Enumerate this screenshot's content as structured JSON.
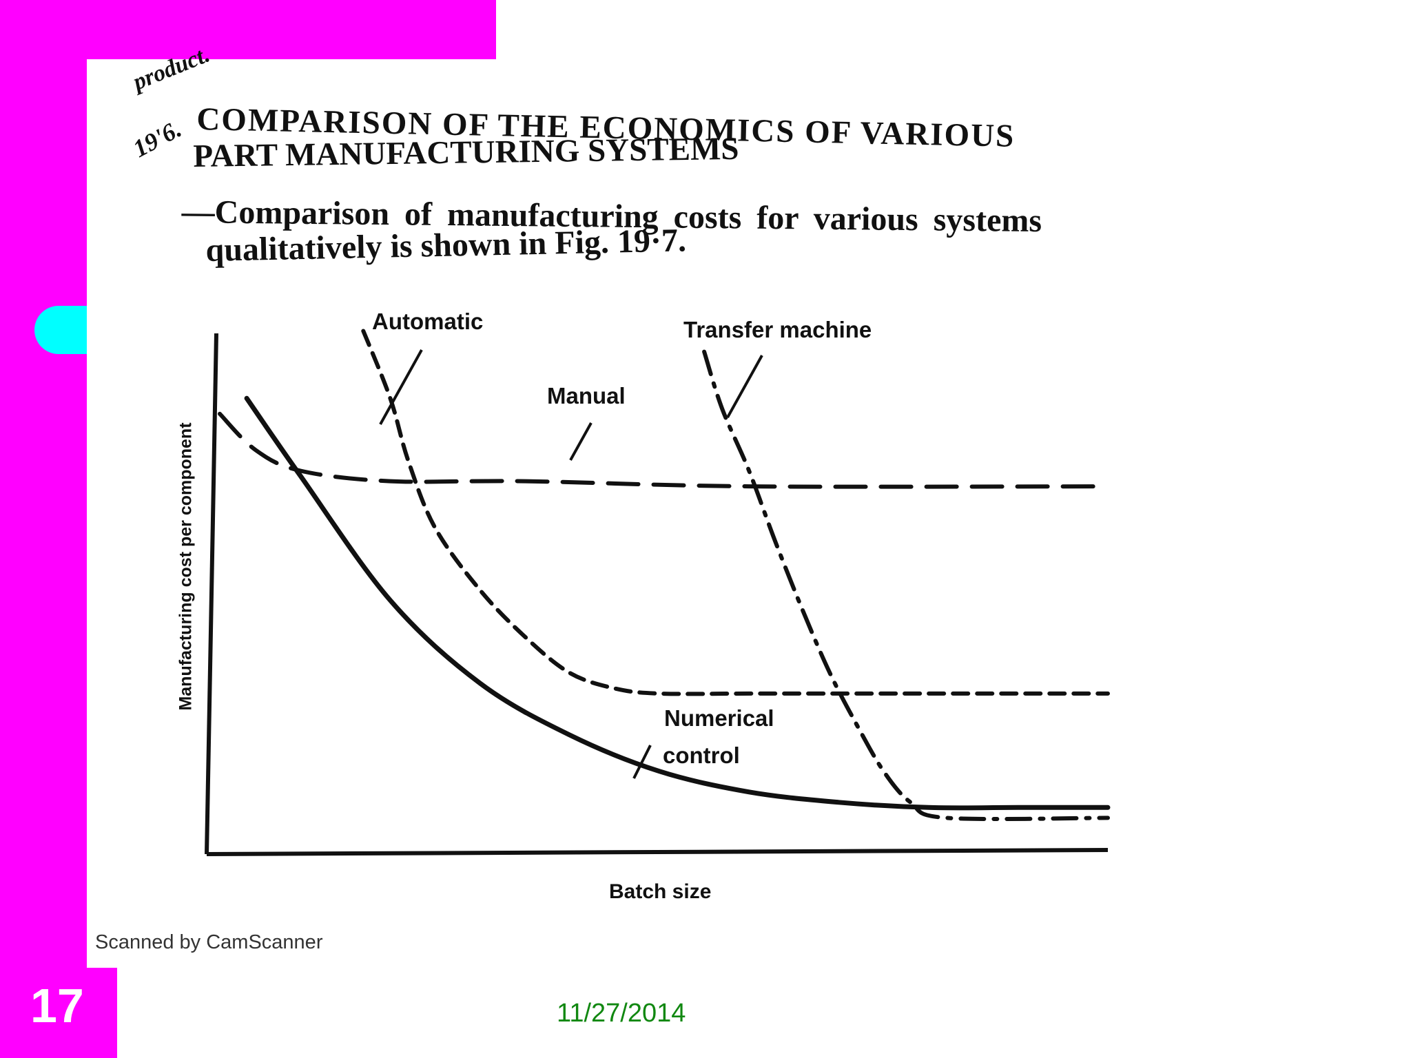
{
  "slide": {
    "number": "17",
    "date": "11/27/2014",
    "colors": {
      "bar": "#ff00ff",
      "tab": "#00ffff",
      "date": "#118811"
    }
  },
  "scan": {
    "top_word": "product.",
    "section_number": "19'6.",
    "section_title_line1": "COMPARISON OF THE ECONOMICS OF VARIOUS",
    "section_title_line2": "PART MANUFACTURING SYSTEMS",
    "body_line1": "—Comparison of manufacturing costs for various systems",
    "body_line2": "qualitatively is shown in Fig. 19·7.",
    "watermark": "Scanned by CamScanner"
  },
  "chart_data": {
    "type": "line",
    "title": "",
    "xlabel": "Batch size",
    "ylabel": "Manufacturing cost per component",
    "xlim": [
      0,
      100
    ],
    "ylim": [
      0,
      100
    ],
    "series": [
      {
        "name": "Manual",
        "style": "long-dash",
        "x": [
          1,
          5,
          10,
          20,
          35,
          60,
          100
        ],
        "y": [
          85,
          78,
          74,
          72,
          72,
          71,
          71
        ]
      },
      {
        "name": "Numerical control",
        "style": "solid",
        "x": [
          4,
          10,
          20,
          30,
          40,
          50,
          60,
          70,
          80,
          90,
          100
        ],
        "y": [
          88,
          73,
          49,
          33,
          23,
          16,
          12,
          10,
          9,
          9,
          9
        ]
      },
      {
        "name": "Automatic",
        "style": "short-dash",
        "x": [
          17,
          20,
          22,
          25,
          30,
          35,
          40,
          45,
          50,
          60,
          70,
          100
        ],
        "y": [
          101,
          88,
          76,
          63,
          51,
          42,
          35,
          32,
          31,
          31,
          31,
          31
        ]
      },
      {
        "name": "Transfer machine",
        "style": "dash-dot",
        "x": [
          55,
          57,
          60,
          63,
          66,
          69,
          72,
          75,
          78,
          82,
          100
        ],
        "y": [
          97,
          86,
          74,
          60,
          47,
          35,
          25,
          16,
          10,
          7,
          7
        ]
      }
    ],
    "annotations": [
      {
        "text": "Automatic"
      },
      {
        "text": "Transfer machine"
      },
      {
        "text": "Manual"
      },
      {
        "text": "Numerical"
      },
      {
        "text": "control"
      }
    ]
  }
}
